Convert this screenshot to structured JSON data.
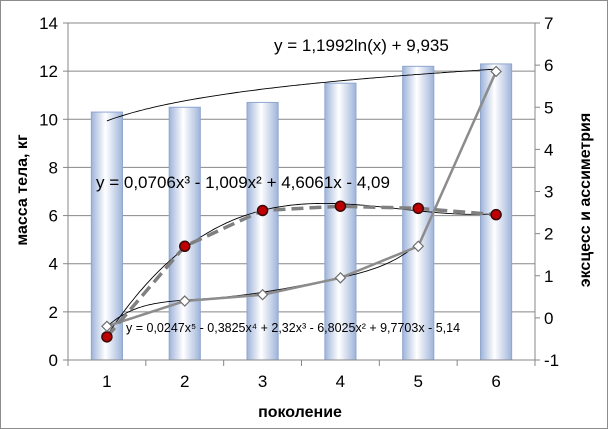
{
  "chart_data": {
    "type": "bar",
    "xlabel": "поколение",
    "ylabel": "масса тела, кг",
    "y2label": "эксцесс и ассиметрия",
    "categories": [
      "1",
      "2",
      "3",
      "4",
      "5",
      "6"
    ],
    "ylim": [
      0,
      14
    ],
    "y2lim": [
      -1,
      7
    ],
    "yticks": [
      "0",
      "2",
      "4",
      "6",
      "8",
      "10",
      "12",
      "14"
    ],
    "y2ticks": [
      "-1",
      "0",
      "1",
      "2",
      "3",
      "4",
      "5",
      "6",
      "7"
    ],
    "grid": "horizontal",
    "series": [
      {
        "type": "bar",
        "axis": "left",
        "values": [
          10.3,
          10.5,
          10.7,
          11.5,
          12.2,
          12.3
        ],
        "color": "#c5d3ea"
      },
      {
        "type": "line",
        "axis": "right",
        "style": "dashed",
        "marker": "circle-red",
        "values": [
          -0.45,
          1.7,
          2.55,
          2.65,
          2.6,
          2.45
        ],
        "color": "#808080"
      },
      {
        "type": "line",
        "axis": "right",
        "style": "solid",
        "marker": "diamond",
        "values": [
          -0.2,
          0.4,
          0.55,
          0.95,
          1.7,
          5.85
        ],
        "color": "#8c8c8c"
      }
    ],
    "trendlines": [
      {
        "label": "y = 1,1992ln(x) + 9,935",
        "kind": "log",
        "axis": "left"
      },
      {
        "label": "y = 0,0706x³ - 1,009x² + 4,6061x - 4,09",
        "kind": "poly3",
        "axis": "right"
      },
      {
        "label": "y = 0,0247x⁵ - 0,3825x⁴ + 2,32x³ - 6,8025x² + 9,7703x - 5,14",
        "kind": "poly5",
        "axis": "right"
      }
    ]
  }
}
